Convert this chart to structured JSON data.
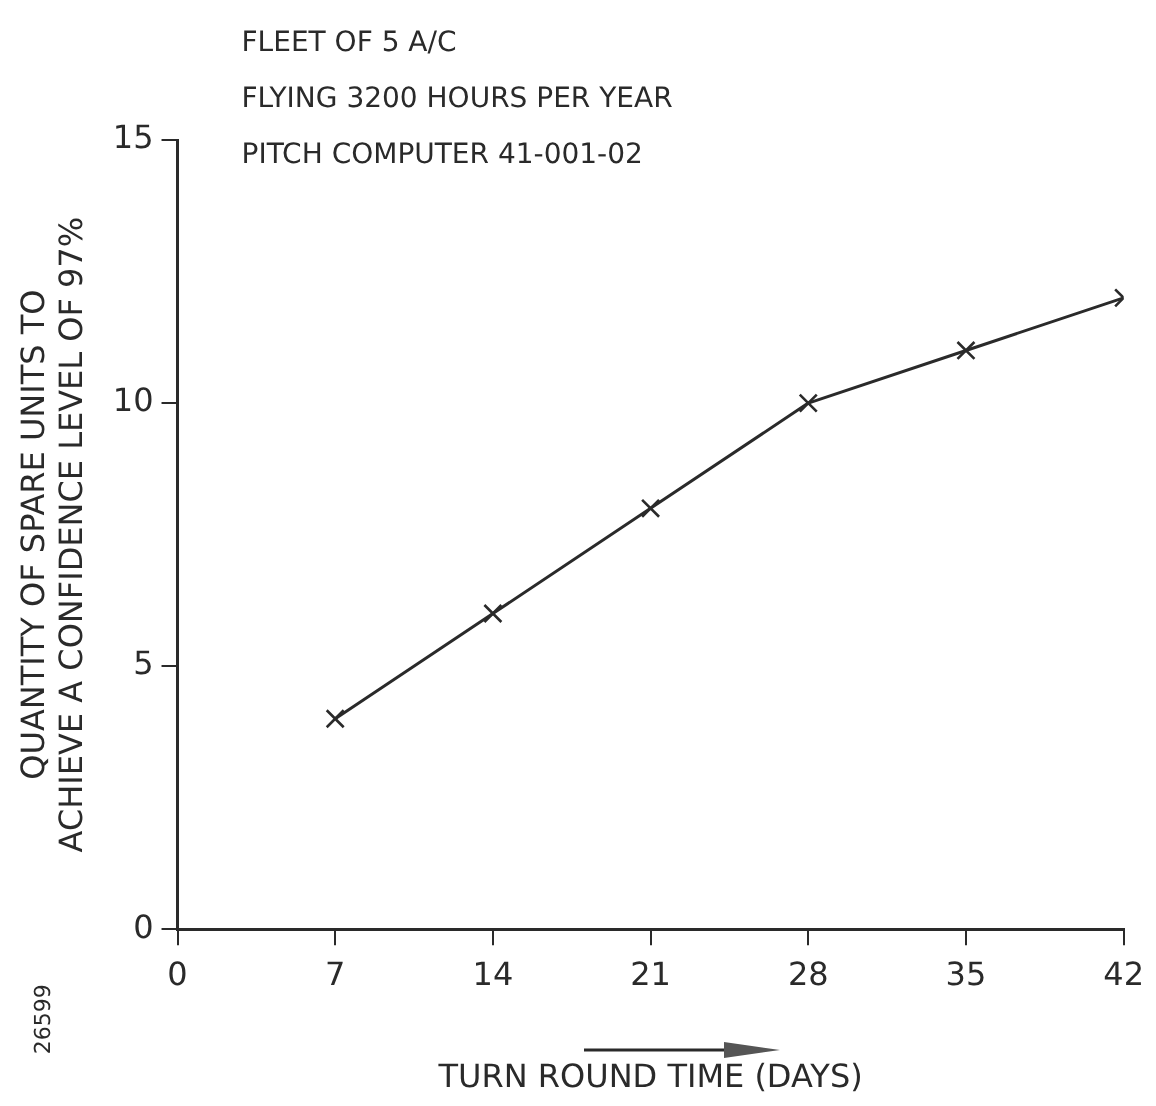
{
  "chart_data": {
    "type": "line",
    "xlabel": "TURN ROUND TIME (DAYS)",
    "ylabel": "QUANTITY OF SPARE UNITS TO\nACHIEVE A CONFIDENCE LEVEL OF 97%",
    "annotations": [
      "FLEET OF 5 A/C",
      "FLYING 3200 HOURS PER YEAR",
      "PITCH COMPUTER 41-001-02",
      "26599"
    ],
    "x": [
      7,
      14,
      21,
      28,
      35,
      42
    ],
    "series": [
      {
        "color": "#2a2a2a",
        "values": [
          4,
          6,
          8,
          10,
          11,
          12
        ]
      }
    ],
    "xlim": [
      0,
      42
    ],
    "xticks": [
      0,
      7,
      14,
      21,
      28,
      35,
      42
    ],
    "ylim": [
      0,
      15
    ],
    "yticks": [
      0,
      5,
      10,
      15
    ],
    "grid": false,
    "legend": false,
    "marker": "cross",
    "line_style": "solid"
  }
}
